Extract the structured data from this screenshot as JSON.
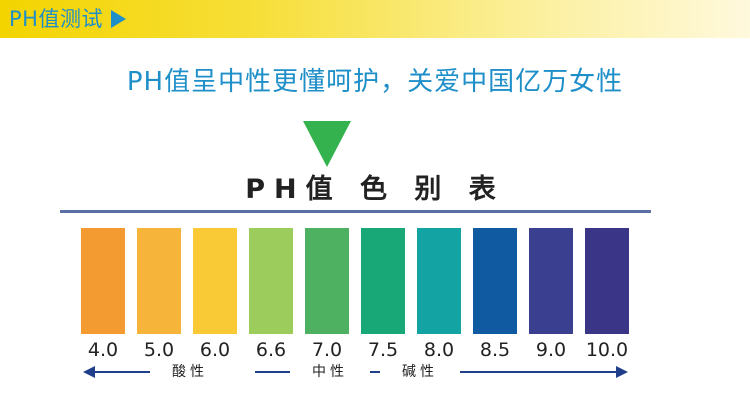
{
  "header": {
    "title": "PH值测试",
    "arrow_icon": "play-triangle-icon"
  },
  "slogan": "PH值呈中性更懂呵护，关爱中国亿万女性",
  "chart": {
    "title": "PH值 色 别 表",
    "swatches": [
      {
        "value": "4.0",
        "color": "#f39a30"
      },
      {
        "value": "5.0",
        "color": "#f7b43a"
      },
      {
        "value": "6.0",
        "color": "#f9c936"
      },
      {
        "value": "6.6",
        "color": "#9ccc5c"
      },
      {
        "value": "7.0",
        "color": "#4db161"
      },
      {
        "value": "7.5",
        "color": "#18a776"
      },
      {
        "value": "8.0",
        "color": "#14a3a3"
      },
      {
        "value": "8.5",
        "color": "#0f5aa0"
      },
      {
        "value": "9.0",
        "color": "#3a3f8f"
      },
      {
        "value": "10.0",
        "color": "#3b3587"
      }
    ],
    "scale": {
      "acid_label": "酸性",
      "neutral_label": "中性",
      "alkaline_label": "碱性"
    }
  }
}
